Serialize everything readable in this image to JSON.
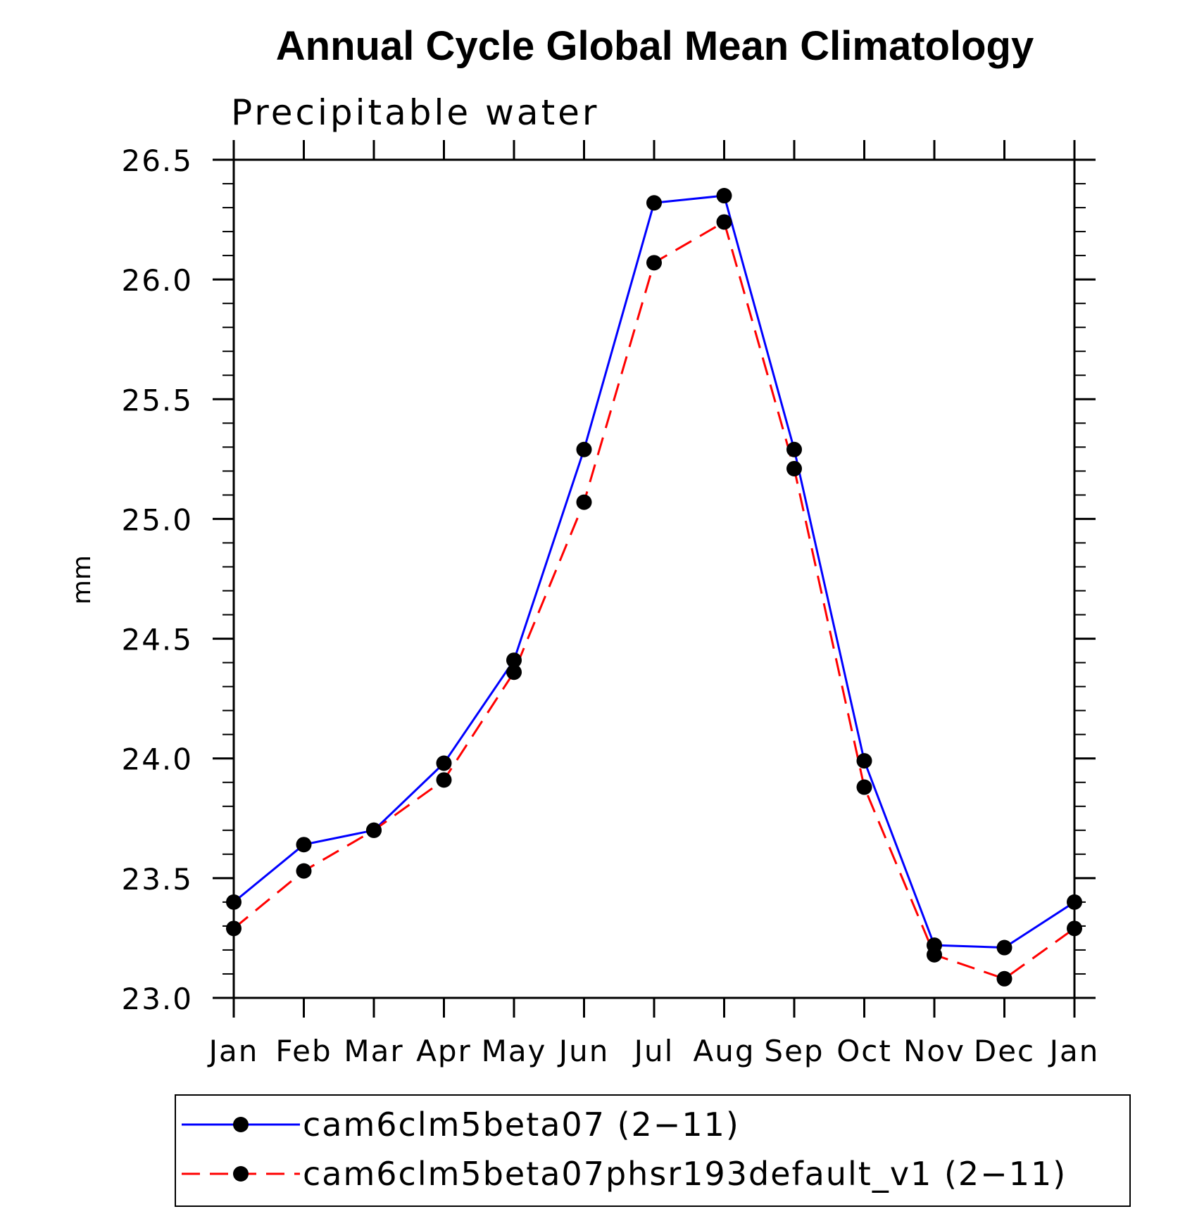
{
  "chart_data": {
    "type": "line",
    "title": "Annual Cycle Global Mean Climatology",
    "subtitle": "Precipitable water",
    "ylabel": "mm",
    "xlabel": "",
    "categories": [
      "Jan",
      "Feb",
      "Mar",
      "Apr",
      "May",
      "Jun",
      "Jul",
      "Aug",
      "Sep",
      "Oct",
      "Nov",
      "Dec",
      "Jan"
    ],
    "ylim": [
      23.0,
      26.5
    ],
    "yticks": [
      "23.0",
      "23.5",
      "24.0",
      "24.5",
      "25.0",
      "25.5",
      "26.0",
      "26.5"
    ],
    "legend_position": "bottom",
    "series": [
      {
        "name": "cam6clm5beta07 (2−11)",
        "color": "#0000ff",
        "line_style": "solid",
        "values": [
          23.4,
          23.64,
          23.7,
          23.98,
          24.41,
          25.29,
          26.32,
          26.35,
          25.29,
          23.99,
          23.22,
          23.21,
          23.4
        ]
      },
      {
        "name": "cam6clm5beta07phsr193default_v1 (2−11)",
        "color": "#ff0000",
        "line_style": "dashed",
        "values": [
          23.29,
          23.53,
          23.7,
          23.91,
          24.36,
          25.07,
          26.07,
          26.24,
          25.21,
          23.88,
          23.18,
          23.08,
          23.29
        ]
      }
    ]
  }
}
